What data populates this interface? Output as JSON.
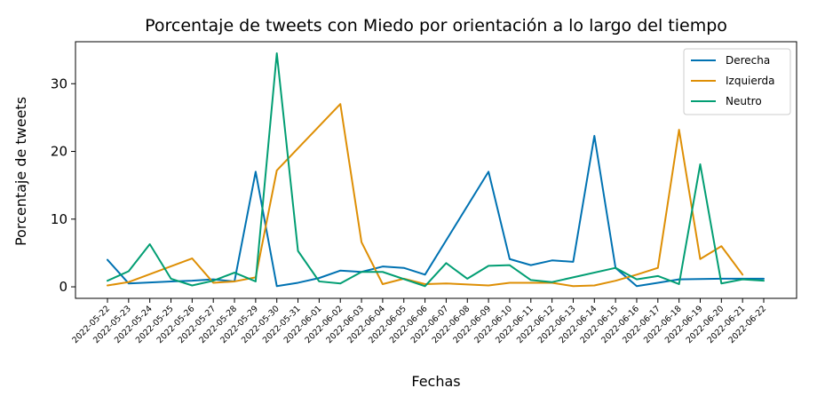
{
  "chart_data": {
    "type": "line",
    "title": "Porcentaje de tweets con Miedo por orientación a lo largo del tiempo",
    "xlabel": "Fechas",
    "ylabel": "Porcentaje de tweets",
    "ylim": [
      -1.7,
      36.2
    ],
    "yticks": [
      0,
      10,
      20,
      30
    ],
    "grid": false,
    "legend_position": "top-right",
    "x_tick_labels": [
      "2022-05-22",
      "2022-05-23",
      "2022-05-24",
      "2022-05-25",
      "2022-05-26",
      "2022-05-27",
      "2022-05-28",
      "2022-05-29",
      "2022-05-30",
      "2022-05-31",
      "2022-06-01",
      "2022-06-02",
      "2022-06-03",
      "2022-06-04",
      "2022-06-05",
      "2022-06-06",
      "2022-06-07",
      "2022-06-08",
      "2022-06-09",
      "2022-06-10",
      "2022-06-11",
      "2022-06-12",
      "2022-06-13",
      "2022-06-14",
      "2022-06-15",
      "2022-06-16",
      "2022-06-17",
      "2022-06-18",
      "2022-06-19",
      "2022-06-20",
      "2022-06-21",
      "2022-06-22"
    ],
    "series": [
      {
        "name": "Derecha",
        "color": "#0072b2",
        "points": [
          [
            "2022-05-22",
            4.0
          ],
          [
            "2022-05-23",
            0.5
          ],
          [
            "2022-05-25",
            0.8
          ],
          [
            "2022-05-26",
            0.9
          ],
          [
            "2022-05-27",
            1.1
          ],
          [
            "2022-05-28",
            0.8
          ],
          [
            "2022-05-29",
            17.0
          ],
          [
            "2022-05-30",
            0.1
          ],
          [
            "2022-05-31",
            0.6
          ],
          [
            "2022-06-01",
            1.3
          ],
          [
            "2022-06-02",
            2.4
          ],
          [
            "2022-06-03",
            2.2
          ],
          [
            "2022-06-04",
            3.0
          ],
          [
            "2022-06-05",
            2.8
          ],
          [
            "2022-06-06",
            1.8
          ],
          [
            "2022-06-09",
            17.0
          ],
          [
            "2022-06-10",
            4.1
          ],
          [
            "2022-06-11",
            3.2
          ],
          [
            "2022-06-12",
            3.9
          ],
          [
            "2022-06-13",
            3.7
          ],
          [
            "2022-06-14",
            22.3
          ],
          [
            "2022-06-15",
            2.8
          ],
          [
            "2022-06-16",
            0.1
          ],
          [
            "2022-06-17",
            0.6
          ],
          [
            "2022-06-18",
            1.1
          ],
          [
            "2022-06-20",
            1.2
          ],
          [
            "2022-06-21",
            1.2
          ],
          [
            "2022-06-22",
            1.2
          ]
        ]
      },
      {
        "name": "Izquierda",
        "color": "#de8f05",
        "points": [
          [
            "2022-05-22",
            0.2
          ],
          [
            "2022-05-23",
            0.7
          ],
          [
            "2022-05-26",
            4.2
          ],
          [
            "2022-05-27",
            0.6
          ],
          [
            "2022-05-28",
            0.8
          ],
          [
            "2022-05-29",
            1.4
          ],
          [
            "2022-05-30",
            17.2
          ],
          [
            "2022-06-02",
            27.0
          ],
          [
            "2022-06-03",
            6.6
          ],
          [
            "2022-06-04",
            0.4
          ],
          [
            "2022-06-05",
            1.2
          ],
          [
            "2022-06-06",
            0.4
          ],
          [
            "2022-06-07",
            0.5
          ],
          [
            "2022-06-09",
            0.2
          ],
          [
            "2022-06-10",
            0.6
          ],
          [
            "2022-06-12",
            0.6
          ],
          [
            "2022-06-13",
            0.1
          ],
          [
            "2022-06-14",
            0.2
          ],
          [
            "2022-06-15",
            0.9
          ],
          [
            "2022-06-16",
            1.8
          ],
          [
            "2022-06-17",
            2.8
          ],
          [
            "2022-06-18",
            23.2
          ],
          [
            "2022-06-19",
            4.1
          ],
          [
            "2022-06-20",
            6.0
          ],
          [
            "2022-06-21",
            1.8
          ]
        ]
      },
      {
        "name": "Neutro",
        "color": "#029e73",
        "points": [
          [
            "2022-05-22",
            0.9
          ],
          [
            "2022-05-23",
            2.3
          ],
          [
            "2022-05-24",
            6.3
          ],
          [
            "2022-05-25",
            1.2
          ],
          [
            "2022-05-26",
            0.2
          ],
          [
            "2022-05-27",
            0.9
          ],
          [
            "2022-05-28",
            2.1
          ],
          [
            "2022-05-29",
            0.8
          ],
          [
            "2022-05-30",
            34.5
          ],
          [
            "2022-05-31",
            5.3
          ],
          [
            "2022-06-01",
            0.8
          ],
          [
            "2022-06-02",
            0.5
          ],
          [
            "2022-06-03",
            2.2
          ],
          [
            "2022-06-04",
            2.2
          ],
          [
            "2022-06-06",
            0.1
          ],
          [
            "2022-06-07",
            3.5
          ],
          [
            "2022-06-08",
            1.2
          ],
          [
            "2022-06-09",
            3.1
          ],
          [
            "2022-06-10",
            3.2
          ],
          [
            "2022-06-11",
            1.0
          ],
          [
            "2022-06-12",
            0.7
          ],
          [
            "2022-06-15",
            2.8
          ],
          [
            "2022-06-16",
            1.1
          ],
          [
            "2022-06-17",
            1.6
          ],
          [
            "2022-06-18",
            0.4
          ],
          [
            "2022-06-19",
            18.1
          ],
          [
            "2022-06-20",
            0.5
          ],
          [
            "2022-06-21",
            1.1
          ],
          [
            "2022-06-22",
            0.9
          ]
        ]
      }
    ]
  }
}
